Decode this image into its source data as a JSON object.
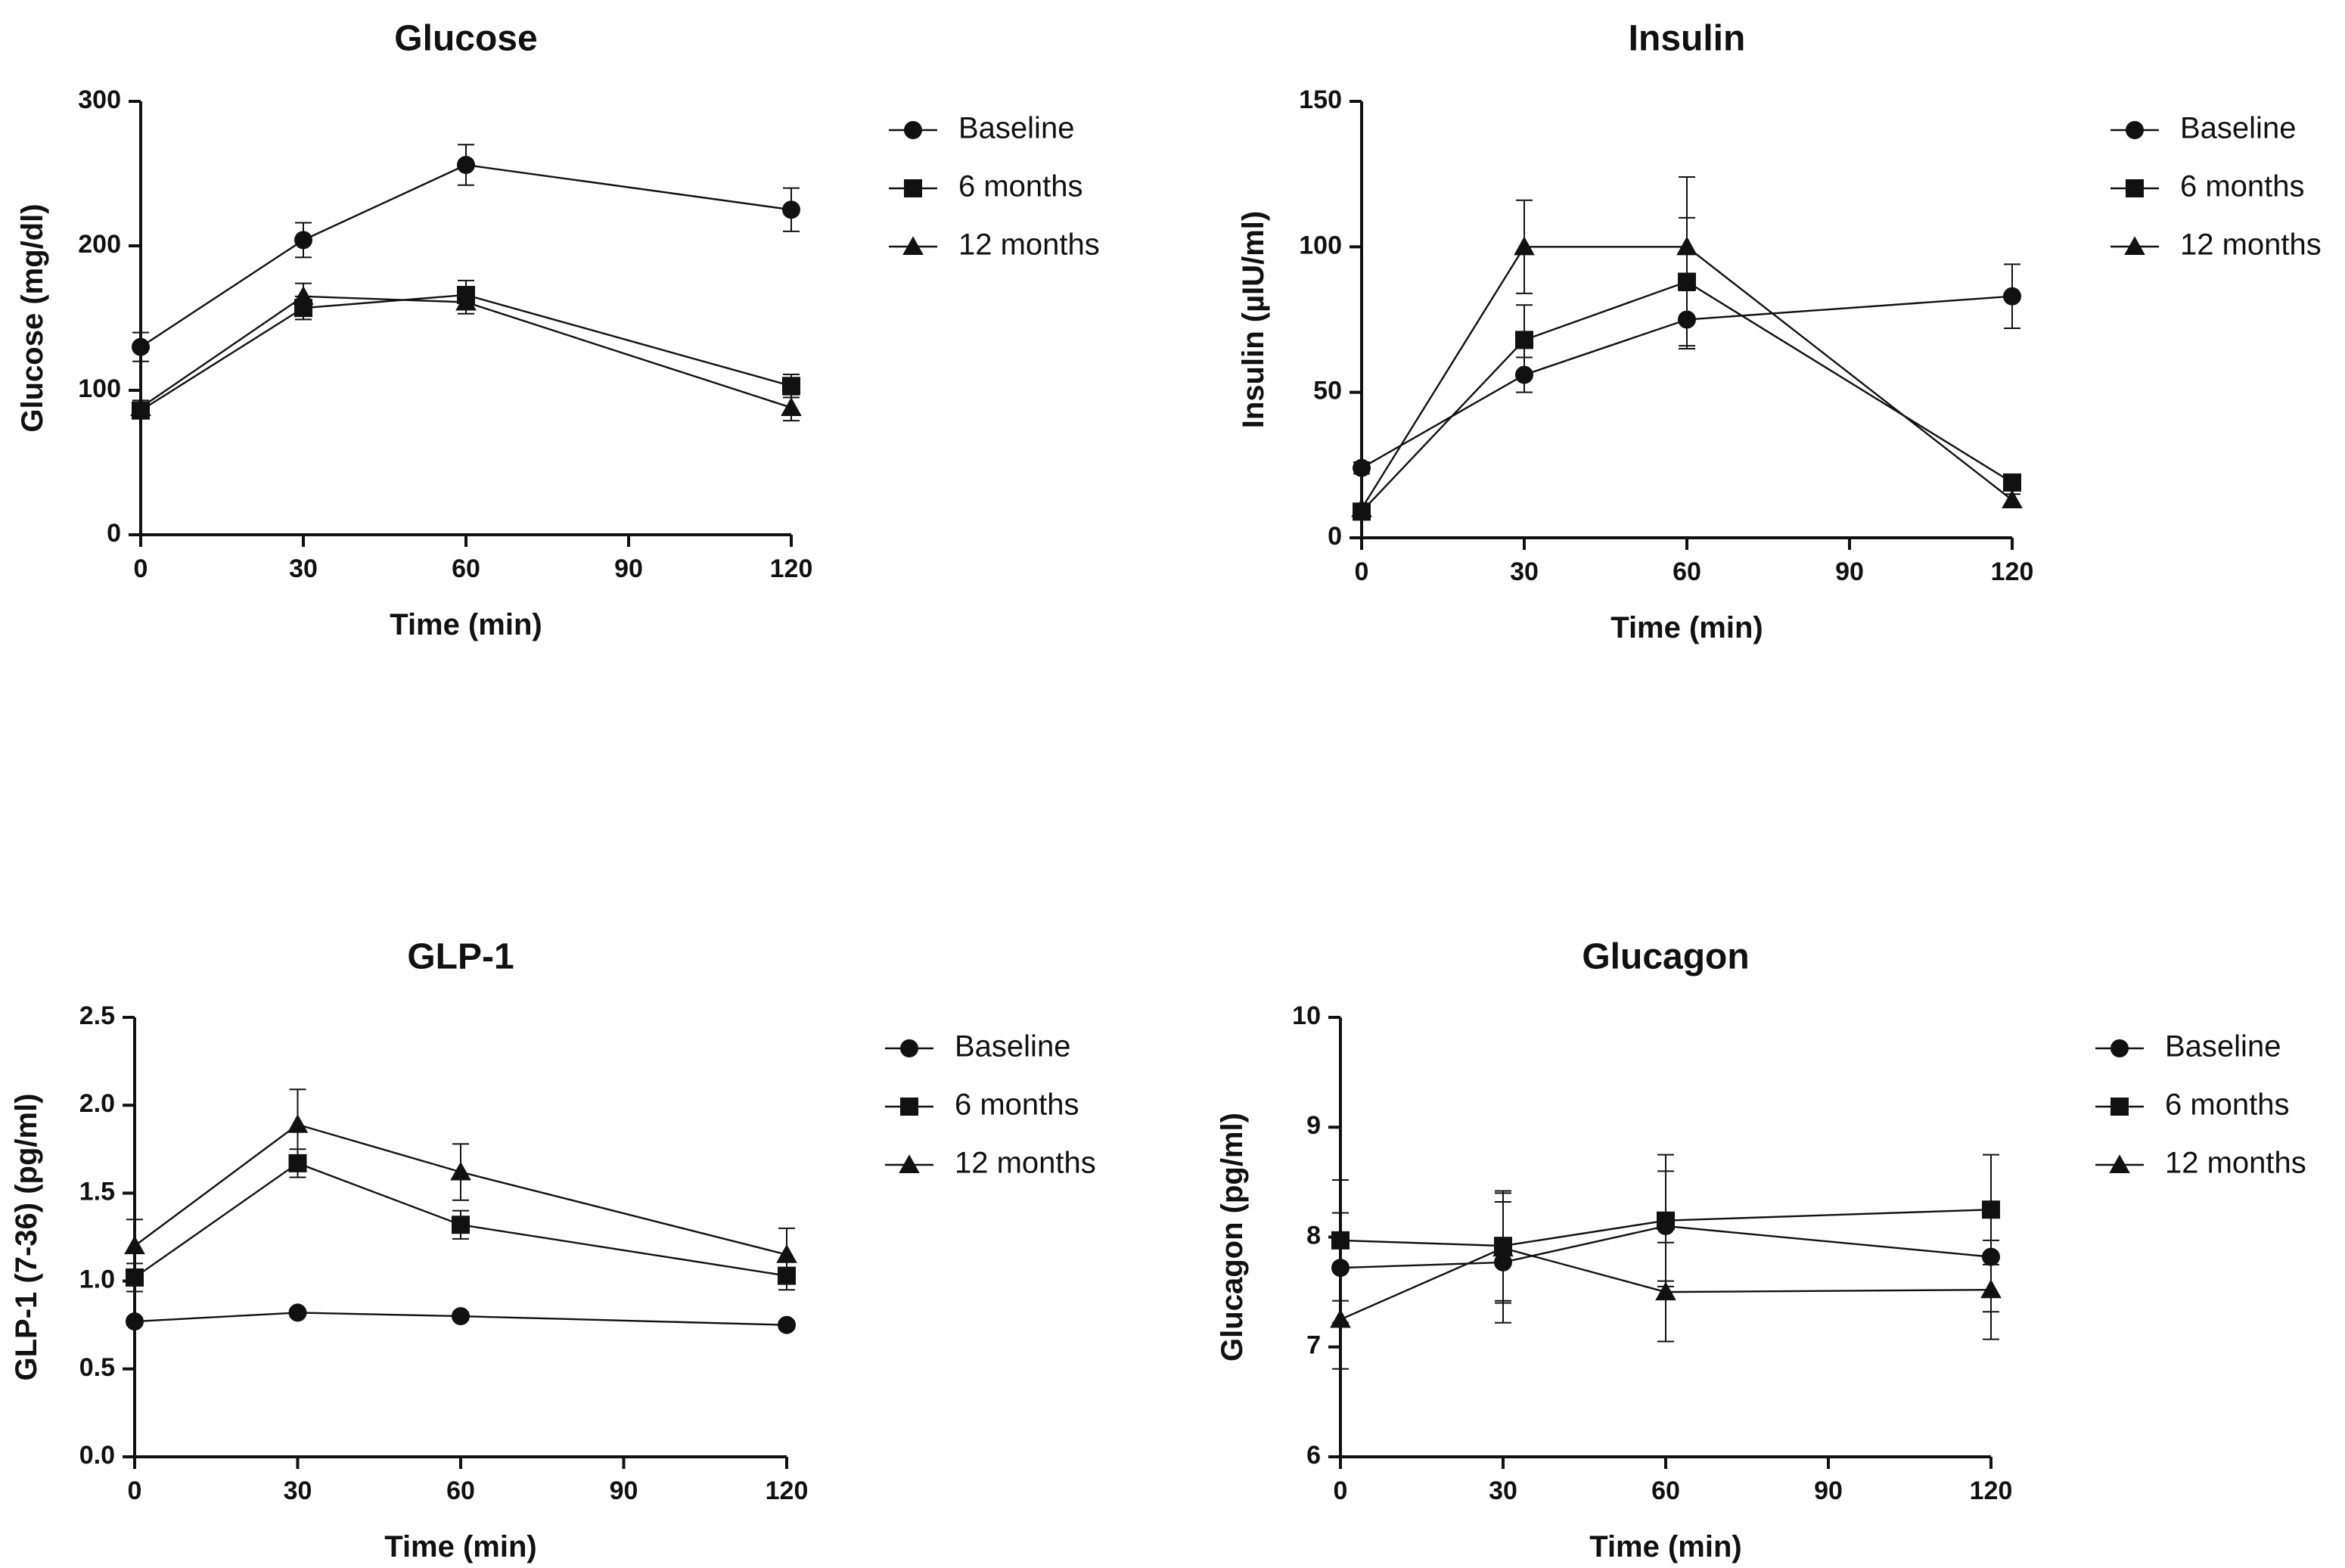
{
  "chart_data": [
    {
      "type": "line",
      "title": "Glucose",
      "xlabel": "Time (min)",
      "ylabel": "Glucose (mg/dl)",
      "x": [
        0,
        30,
        60,
        120
      ],
      "xticks": [
        "0",
        "30",
        "60",
        "90",
        "120"
      ],
      "xlim": [
        0,
        120
      ],
      "ylim": [
        0,
        300
      ],
      "yticks": [
        "0",
        "100",
        "200",
        "300"
      ],
      "legend_position": "right",
      "series": [
        {
          "name": "Baseline",
          "marker": "circle",
          "values": [
            130,
            204,
            256,
            225
          ],
          "errors": [
            10,
            12,
            14,
            15
          ]
        },
        {
          "name": "6 months",
          "marker": "square",
          "values": [
            86,
            157,
            166,
            103
          ],
          "errors": [
            5,
            8,
            10,
            8
          ]
        },
        {
          "name": "12 months",
          "marker": "triangle",
          "values": [
            88,
            165,
            161,
            88
          ],
          "errors": [
            5,
            9,
            8,
            9
          ]
        }
      ]
    },
    {
      "type": "line",
      "title": "Insulin",
      "xlabel": "Time (min)",
      "ylabel": "Insulin (µIU/ml)",
      "x": [
        0,
        30,
        60,
        120
      ],
      "xticks": [
        "0",
        "30",
        "60",
        "90",
        "120"
      ],
      "xlim": [
        0,
        120
      ],
      "ylim": [
        0,
        150
      ],
      "yticks": [
        "0",
        "50",
        "100",
        "150"
      ],
      "legend_position": "right",
      "series": [
        {
          "name": "Baseline",
          "marker": "circle",
          "values": [
            24,
            56,
            75,
            83
          ],
          "errors": [
            2,
            6,
            10,
            11
          ]
        },
        {
          "name": "6 months",
          "marker": "square",
          "values": [
            9,
            68,
            88,
            19
          ],
          "errors": [
            1,
            12,
            22,
            2
          ]
        },
        {
          "name": "12 months",
          "marker": "triangle",
          "values": [
            10,
            100,
            100,
            13
          ],
          "errors": [
            1,
            16,
            24,
            2
          ]
        }
      ]
    },
    {
      "type": "line",
      "title": "GLP-1",
      "xlabel": "Time (min)",
      "ylabel": "GLP-1 (7-36) (pg/ml)",
      "x": [
        0,
        30,
        60,
        120
      ],
      "xticks": [
        "0",
        "30",
        "60",
        "90",
        "120"
      ],
      "xlim": [
        0,
        120
      ],
      "ylim": [
        0,
        2.5
      ],
      "yticks": [
        "0.0",
        "0.5",
        "1.0",
        "1.5",
        "2.0",
        "2.5"
      ],
      "legend_position": "right",
      "series": [
        {
          "name": "Baseline",
          "marker": "circle",
          "values": [
            0.77,
            0.82,
            0.8,
            0.75
          ],
          "errors": [
            0.02,
            0.02,
            0.02,
            0.02
          ]
        },
        {
          "name": "6 months",
          "marker": "square",
          "values": [
            1.02,
            1.67,
            1.32,
            1.03
          ],
          "errors": [
            0.08,
            0.08,
            0.08,
            0.08
          ]
        },
        {
          "name": "12 months",
          "marker": "triangle",
          "values": [
            1.2,
            1.89,
            1.62,
            1.15
          ],
          "errors": [
            0.15,
            0.2,
            0.16,
            0.15
          ]
        }
      ]
    },
    {
      "type": "line",
      "title": "Glucagon",
      "xlabel": "Time (min)",
      "ylabel": "Glucagon (pg/ml)",
      "x": [
        0,
        30,
        60,
        120
      ],
      "xticks": [
        "0",
        "30",
        "60",
        "90",
        "120"
      ],
      "xlim": [
        0,
        120
      ],
      "ylim": [
        6,
        10
      ],
      "yticks": [
        "6",
        "7",
        "8",
        "9",
        "10"
      ],
      "legend_position": "right",
      "series": [
        {
          "name": "Baseline",
          "marker": "circle",
          "values": [
            7.72,
            7.77,
            8.1,
            7.82
          ],
          "errors": [
            0.5,
            0.55,
            0.5,
            0.5
          ]
        },
        {
          "name": "6 months",
          "marker": "square",
          "values": [
            7.97,
            7.92,
            8.15,
            8.25
          ],
          "errors": [
            0.55,
            0.5,
            0.6,
            0.5
          ]
        },
        {
          "name": "12 months",
          "marker": "triangle",
          "values": [
            7.25,
            7.9,
            7.5,
            7.52
          ],
          "errors": [
            0.45,
            0.5,
            0.45,
            0.45
          ]
        }
      ]
    }
  ]
}
